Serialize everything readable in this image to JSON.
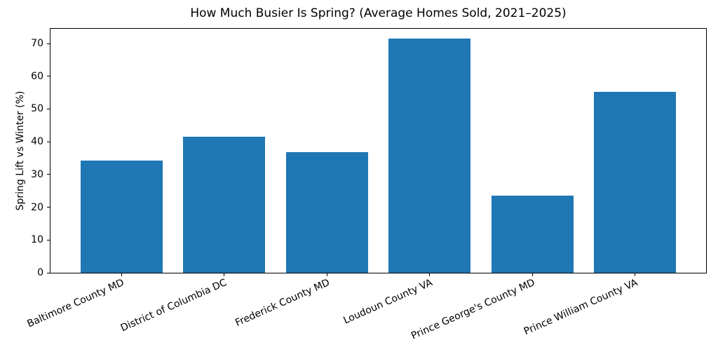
{
  "chart_data": {
    "type": "bar",
    "title": "How Much Busier Is Spring? (Average Homes Sold, 2021–2025)",
    "ylabel": "Spring Lift vs Winter (%)",
    "xlabel": "",
    "categories": [
      "Baltimore County MD",
      "District of Columbia DC",
      "Frederick County MD",
      "Loudoun County VA",
      "Prince George's County MD",
      "Prince William County VA"
    ],
    "values": [
      34.2,
      41.5,
      36.8,
      71.6,
      23.5,
      55.2
    ],
    "yticks": [
      0,
      10,
      20,
      30,
      40,
      50,
      60,
      70
    ],
    "ylim": [
      0,
      74.5
    ],
    "bar_color": "#1f77b4",
    "bar_width_fraction": 0.8,
    "x_tick_rotation_deg": 24,
    "grid": false,
    "legend": false,
    "text_color": "#000000",
    "background_color": "#ffffff"
  }
}
